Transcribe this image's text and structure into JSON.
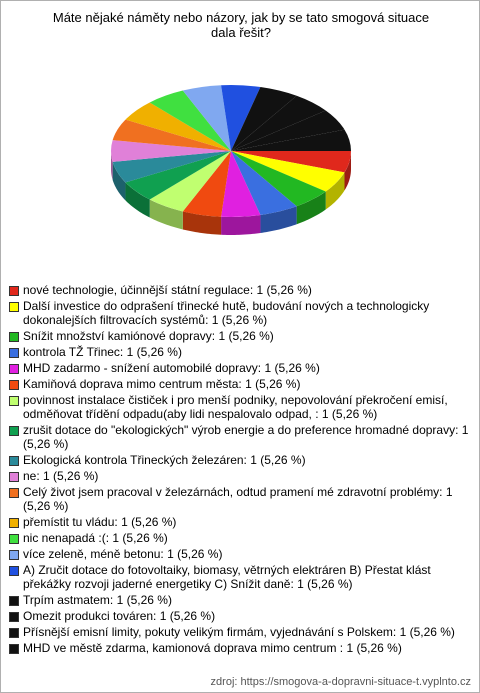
{
  "chart_data": {
    "type": "pie",
    "title": "Máte nějaké náměty nebo názory, jak by se tato smogová situace dala řešit?",
    "categories": [
      "nové technologie, účinnější státní regulace:",
      "Další investice do odprašení třinecké hutě, budování nových a technologicky dokonalejších filtrovacích systémů:",
      "Snížit množství kamiónové dopravy:",
      "kontrola TŽ Třinec:",
      "MHD zadarmo - snížení automobilé dopravy:",
      "Kamiňová doprava mimo centrum města:",
      "povinnost instalace čističek i pro menší podniky, nepovolování překročení emisí, odměňovat třídění odpadu(aby lidi nespalovalo odpad,  :",
      "zrušit dotace do \"ekologických\" výrob energie a do preference hromadné dopravy:",
      "Ekologická kontrola Třineckých železáren:",
      "ne:",
      "Celý život jsem pracoval v železárnách, odtud pramení mé zdravotní problémy:",
      "přemístit tu vládu:",
      "nic nenapadá :(:",
      "více zeleně, méně betonu:",
      "A) Zručit dotace do fotovoltaiky, biomasy, větrných elektráren B) Přestat klást překážky rozvoji jaderné energetiky C) Snížit daně:",
      "Trpím astmatem:",
      "Omezit produkci továren:",
      "Přísnější emisní limity, pokuty velikým firmám, vyjednávání s Polskem:",
      "MHD ve městě zdarma, kamionová doprava mimo centrum :"
    ],
    "values": [
      1,
      1,
      1,
      1,
      1,
      1,
      1,
      1,
      1,
      1,
      1,
      1,
      1,
      1,
      1,
      1,
      1,
      1,
      1
    ],
    "value_labels": [
      "1 (5,26 %)",
      "1 (5,26 %)",
      "1 (5,26 %)",
      "1 (5,26 %)",
      "1 (5,26 %)",
      "1 (5,26 %)",
      "1 (5,26 %)",
      "1 (5,26 %)",
      "1 (5,26 %)",
      "1 (5,26 %)",
      "1 (5,26 %)",
      "1 (5,26 %)",
      "1 (5,26 %)",
      "1 (5,26 %)",
      "1 (5,26 %)",
      "1 (5,26 %)",
      "1 (5,26 %)",
      "1 (5,26 %)",
      "1 (5,26 %)"
    ],
    "colors": [
      "#e0281c",
      "#ffff00",
      "#22b822",
      "#3a6fe0",
      "#e020e0",
      "#f04a10",
      "#c0ff70",
      "#10a050",
      "#2a8a9a",
      "#e080d8",
      "#f07020",
      "#f0b000",
      "#40e040",
      "#80a8f0",
      "#2050e0",
      "#111111",
      "#111111",
      "#111111",
      "#111111"
    ],
    "source": "zdroj: https://smogova-a-dopravni-situace-t.vyplnto.cz"
  }
}
